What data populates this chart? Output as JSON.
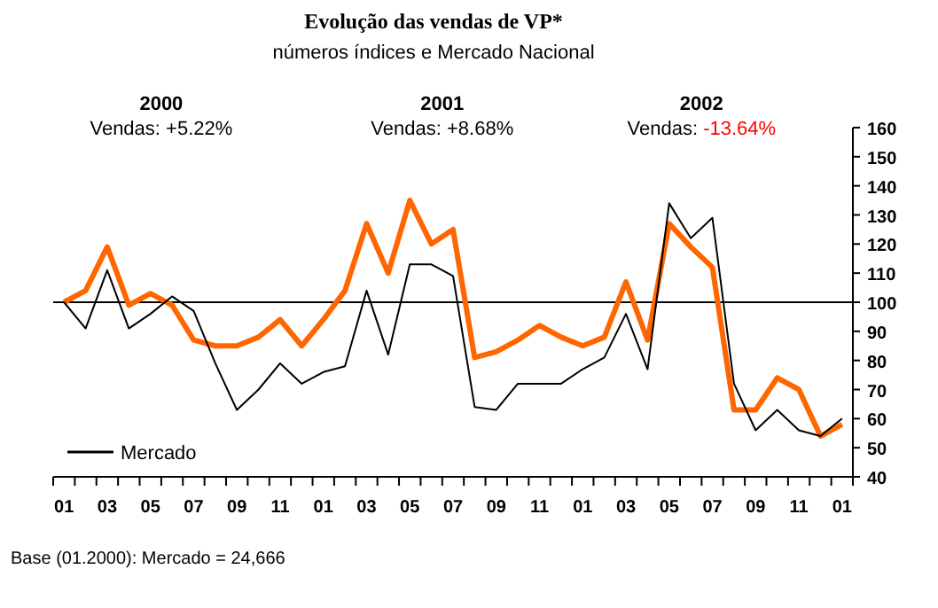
{
  "chart_data": {
    "type": "line",
    "title": "Evolução das vendas de VP*",
    "subtitle": "números índices e Mercado Nacional",
    "categories": [
      "01",
      null,
      "03",
      null,
      "05",
      null,
      "07",
      null,
      "09",
      null,
      "11",
      null,
      "01",
      null,
      "03",
      null,
      "05",
      null,
      "07",
      null,
      "09",
      null,
      "11",
      null,
      "01",
      null,
      "03",
      null,
      "05",
      null,
      "07",
      null,
      "09",
      null,
      "11",
      null,
      "01"
    ],
    "series": [
      {
        "color": "#ff6600",
        "values": [
          100,
          104,
          119,
          99,
          103,
          99,
          87,
          85,
          85,
          88,
          94,
          85,
          94,
          104,
          127,
          110,
          135,
          120,
          125,
          81,
          83,
          87,
          92,
          88,
          85,
          88,
          107,
          87,
          127,
          119,
          112,
          63,
          63,
          74,
          70,
          54,
          58
        ]
      },
      {
        "name": "Mercado",
        "color": "#000000",
        "values": [
          100,
          91,
          111,
          91,
          96,
          102,
          97,
          79,
          63,
          70,
          79,
          72,
          76,
          78,
          104,
          82,
          113,
          113,
          109,
          64,
          63,
          72,
          72,
          72,
          77,
          81,
          96,
          77,
          134,
          122,
          129,
          72,
          56,
          63,
          56,
          54,
          60
        ]
      }
    ],
    "ylim": [
      40,
      160
    ],
    "yticks": [
      40,
      50,
      60,
      70,
      80,
      90,
      100,
      110,
      120,
      130,
      140,
      150,
      160
    ],
    "ref_lines": [
      {
        "axis": "y",
        "value": 100,
        "color": "#000000"
      }
    ],
    "annotations": [
      "2000",
      "Vendas: +5.22%",
      "2001",
      "Vendas: +8.68%",
      "2002",
      "Vendas: -13.64%",
      "Base (01.2000): Mercado = 24,666"
    ],
    "legend": "bottom left",
    "grid": false,
    "marker": "none",
    "line_style": "solid"
  }
}
